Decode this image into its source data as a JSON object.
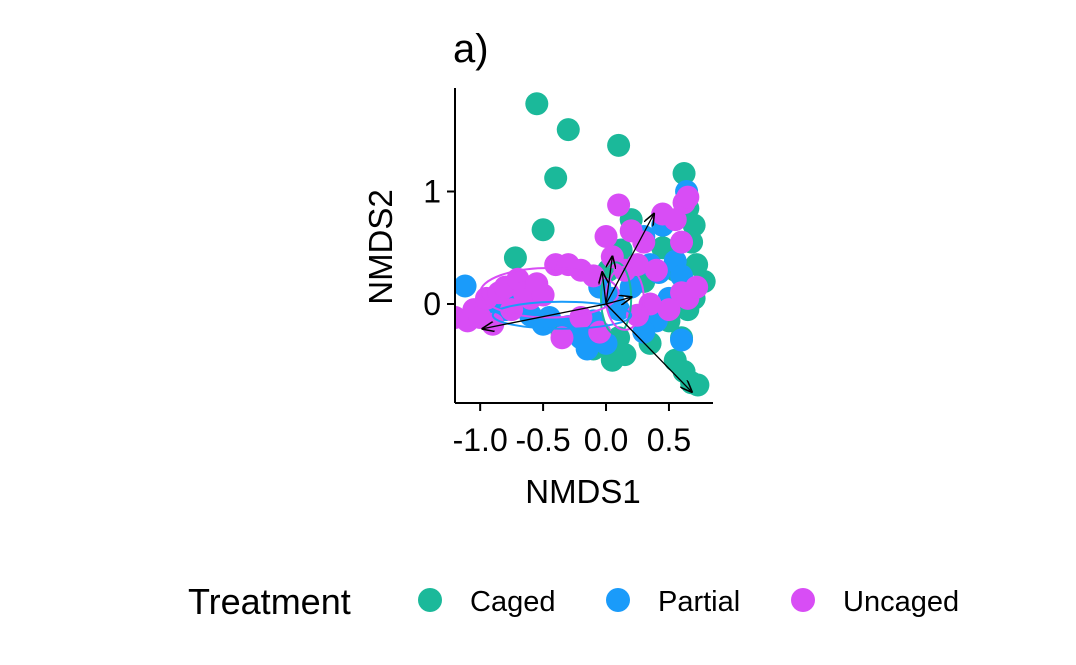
{
  "chart_data": {
    "type": "scatter",
    "title": "a)",
    "xlabel": "NMDS1",
    "ylabel": "NMDS2",
    "xlim": [
      -1.2,
      0.85
    ],
    "ylim": [
      -0.88,
      1.92
    ],
    "xticks": [
      {
        "value": -1.0,
        "label": "-1.0"
      },
      {
        "value": -0.5,
        "label": "-0.5"
      },
      {
        "value": 0.0,
        "label": "0.0"
      },
      {
        "value": 0.5,
        "label": "0.5"
      }
    ],
    "yticks": [
      {
        "value": 0,
        "label": "0"
      },
      {
        "value": 1,
        "label": "1"
      }
    ],
    "grid": false,
    "legend_position": "bottom",
    "legend_title": "Treatment",
    "series": [
      {
        "name": "Caged",
        "color": "#1BB99A",
        "points": [
          [
            -0.55,
            1.78
          ],
          [
            -0.3,
            1.55
          ],
          [
            0.1,
            1.41
          ],
          [
            -0.4,
            1.12
          ],
          [
            -0.5,
            0.66
          ],
          [
            -0.72,
            0.41
          ],
          [
            0.62,
            1.16
          ],
          [
            0.65,
            0.85
          ],
          [
            0.7,
            0.7
          ],
          [
            0.68,
            0.55
          ],
          [
            0.72,
            0.35
          ],
          [
            0.78,
            0.2
          ],
          [
            0.55,
            0.3
          ],
          [
            0.6,
            0.1
          ],
          [
            0.7,
            0.05
          ],
          [
            0.65,
            -0.05
          ],
          [
            0.5,
            -0.15
          ],
          [
            0.6,
            -0.3
          ],
          [
            0.55,
            -0.5
          ],
          [
            0.62,
            -0.6
          ],
          [
            0.68,
            -0.7
          ],
          [
            0.73,
            -0.72
          ],
          [
            0.2,
            0.75
          ],
          [
            0.12,
            0.48
          ],
          [
            0.02,
            0.3
          ],
          [
            -0.05,
            0.2
          ],
          [
            0.1,
            -0.3
          ],
          [
            0.15,
            -0.45
          ],
          [
            0.05,
            -0.5
          ],
          [
            -0.2,
            -0.2
          ],
          [
            -0.35,
            -0.25
          ],
          [
            -0.1,
            -0.4
          ],
          [
            0.4,
            -0.1
          ],
          [
            0.3,
            0.2
          ],
          [
            0.45,
            0.5
          ],
          [
            0.35,
            -0.35
          ]
        ]
      },
      {
        "name": "Partial",
        "color": "#1A9BFA",
        "points": [
          [
            -1.12,
            0.16
          ],
          [
            0.64,
            1.0
          ],
          [
            0.45,
            0.7
          ],
          [
            0.3,
            0.6
          ],
          [
            0.35,
            0.35
          ],
          [
            0.42,
            0.28
          ],
          [
            0.55,
            0.38
          ],
          [
            0.6,
            0.25
          ],
          [
            0.5,
            0.05
          ],
          [
            0.4,
            -0.15
          ],
          [
            0.3,
            -0.25
          ],
          [
            0.6,
            -0.32
          ],
          [
            -0.95,
            -0.1
          ],
          [
            -0.8,
            -0.05
          ],
          [
            -0.7,
            0.05
          ],
          [
            -0.6,
            -0.1
          ],
          [
            -0.5,
            -0.18
          ],
          [
            -0.45,
            -0.12
          ],
          [
            -0.3,
            -0.2
          ],
          [
            -0.2,
            -0.3
          ],
          [
            -0.1,
            -0.15
          ],
          [
            -0.05,
            0.15
          ],
          [
            0.05,
            0.05
          ],
          [
            0.1,
            -0.05
          ],
          [
            0.2,
            0.15
          ],
          [
            0.0,
            -0.35
          ],
          [
            -0.15,
            -0.4
          ]
        ]
      },
      {
        "name": "Uncaged",
        "color": "#D84DF5",
        "points": [
          [
            -1.2,
            -0.12
          ],
          [
            -1.1,
            -0.15
          ],
          [
            -1.05,
            -0.05
          ],
          [
            -1.0,
            -0.12
          ],
          [
            -0.95,
            0.05
          ],
          [
            -0.9,
            -0.18
          ],
          [
            -0.85,
            0.1
          ],
          [
            -0.8,
            0.15
          ],
          [
            -0.75,
            -0.05
          ],
          [
            -0.7,
            0.22
          ],
          [
            -0.65,
            0.1
          ],
          [
            -0.6,
            0.05
          ],
          [
            -0.55,
            0.18
          ],
          [
            -0.5,
            0.08
          ],
          [
            -0.4,
            0.35
          ],
          [
            -0.3,
            0.35
          ],
          [
            -0.2,
            0.3
          ],
          [
            -0.1,
            0.25
          ],
          [
            0.0,
            0.6
          ],
          [
            0.1,
            0.88
          ],
          [
            0.2,
            0.65
          ],
          [
            0.3,
            0.55
          ],
          [
            0.45,
            0.8
          ],
          [
            0.55,
            0.75
          ],
          [
            0.6,
            0.55
          ],
          [
            0.62,
            0.9
          ],
          [
            0.65,
            0.95
          ],
          [
            0.6,
            0.1
          ],
          [
            0.65,
            0.05
          ],
          [
            0.72,
            0.15
          ],
          [
            0.5,
            -0.05
          ],
          [
            0.35,
            0.0
          ],
          [
            0.25,
            -0.1
          ],
          [
            0.15,
            0.3
          ],
          [
            -0.05,
            -0.25
          ],
          [
            -0.35,
            -0.3
          ],
          [
            -0.2,
            -0.12
          ],
          [
            0.05,
            0.42
          ],
          [
            0.25,
            0.35
          ],
          [
            0.4,
            0.3
          ]
        ]
      }
    ],
    "ellipses": [
      {
        "series": "Caged",
        "cx": 0.08,
        "cy": 0.05,
        "rx": 0.12,
        "ry": 0.32,
        "color": "#1BB99A"
      },
      {
        "series": "Partial",
        "cx": -0.35,
        "cy": -0.1,
        "rx": 0.55,
        "ry": 0.12,
        "color": "#1A9BFA"
      },
      {
        "series": "Uncaged",
        "cx": -0.45,
        "cy": 0.1,
        "rx": 0.55,
        "ry": 0.22,
        "color": "#D84DF5"
      },
      {
        "series": "Uncaged",
        "cx": 0.15,
        "cy": 0.05,
        "rx": 0.15,
        "ry": 0.28,
        "color": "#D84DF5"
      }
    ],
    "vectors": [
      {
        "from": [
          0,
          0
        ],
        "to": [
          -0.98,
          -0.22
        ]
      },
      {
        "from": [
          0,
          0
        ],
        "to": [
          0.68,
          -0.78
        ]
      },
      {
        "from": [
          0,
          0
        ],
        "to": [
          0.38,
          0.8
        ]
      },
      {
        "from": [
          0,
          0
        ],
        "to": [
          0.2,
          0.06
        ]
      },
      {
        "from": [
          0,
          0
        ],
        "to": [
          0.05,
          0.42
        ]
      },
      {
        "from": [
          0,
          0
        ],
        "to": [
          -0.03,
          0.28
        ]
      }
    ]
  }
}
